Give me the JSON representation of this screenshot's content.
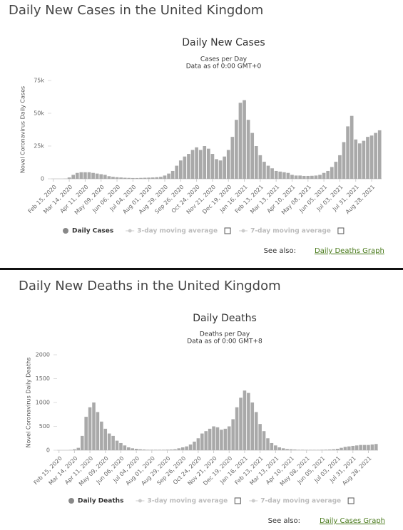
{
  "sections": [
    {
      "heading": "Daily New Cases in the United Kingdom",
      "see_also": "See also:",
      "link": "Daily Deaths Graph"
    },
    {
      "heading": "Daily New Deaths in the United Kingdom",
      "see_also": "See also:",
      "link": "Daily Cases Graph"
    }
  ],
  "chart_data": [
    {
      "type": "bar",
      "title": "Daily New Cases",
      "subtitle": [
        "Cases per Day",
        "Data as of 0:00 GMT+0"
      ],
      "y_label": "Novel Coronavirus Daily Cases",
      "categories": [
        "Feb 15, 2020",
        null,
        null,
        null,
        "Mar 14, 2020",
        null,
        null,
        null,
        "Apr 11, 2020",
        null,
        null,
        null,
        "May 09, 2020",
        null,
        null,
        null,
        "Jun 06, 2020",
        null,
        null,
        null,
        "Jul 04, 2020",
        null,
        null,
        null,
        "Aug 01, 2020",
        null,
        null,
        null,
        "Aug 29, 2020",
        null,
        null,
        null,
        "Sep 26, 2020",
        null,
        null,
        null,
        "Oct 24, 2020",
        null,
        null,
        null,
        "Nov 21, 2020",
        null,
        null,
        null,
        "Dec 19, 2020",
        null,
        null,
        null,
        "Jan 16, 2021",
        null,
        null,
        null,
        "Feb 13, 2021",
        null,
        null,
        null,
        "Mar 13, 2021",
        null,
        null,
        null,
        "Apr 10, 2021",
        null,
        null,
        null,
        "May 08, 2021",
        null,
        null,
        null,
        "Jun 05, 2021",
        null,
        null,
        null,
        "Jul 03, 2021",
        null,
        null,
        null,
        "Jul 31, 2021",
        null,
        null,
        null,
        "Aug 28, 2021",
        null,
        null
      ],
      "series": [
        {
          "name": "Daily Cases",
          "color": "#a9a9a9",
          "values": [
            0,
            0,
            0,
            100,
            1000,
            3000,
            4500,
            5000,
            5000,
            5000,
            4500,
            4000,
            3500,
            3000,
            2000,
            1500,
            1200,
            1000,
            800,
            700,
            600,
            600,
            700,
            800,
            900,
            1000,
            1200,
            1500,
            2500,
            4000,
            6000,
            10000,
            14000,
            17000,
            19000,
            22000,
            24000,
            22000,
            25000,
            23000,
            19000,
            15000,
            14000,
            17000,
            22000,
            32000,
            45000,
            58000,
            60000,
            45000,
            35000,
            25000,
            18000,
            13000,
            10000,
            8000,
            6000,
            5500,
            5000,
            4500,
            3000,
            2500,
            2500,
            2200,
            2200,
            2300,
            2500,
            3000,
            4500,
            6000,
            9000,
            13000,
            18000,
            28000,
            40000,
            48000,
            30000,
            27000,
            29000,
            32000,
            33000,
            35000,
            37000
          ]
        }
      ],
      "inactive_legend": [
        "3-day moving average",
        "7-day moving average"
      ],
      "ylim": [
        0,
        75000
      ],
      "yticks": [
        0,
        {
          "value": 25000,
          "label": "25k"
        },
        {
          "value": 50000,
          "label": "50k"
        },
        {
          "value": 75000,
          "label": "75k"
        }
      ],
      "grid": false
    },
    {
      "type": "bar",
      "title": "Daily Deaths",
      "subtitle": [
        "Deaths per Day",
        "Data as of 0:00 GMT+8"
      ],
      "y_label": "Novel Coronavirus Daily Deaths",
      "categories": [
        "Feb 15, 2020",
        null,
        null,
        null,
        "Mar 14, 2020",
        null,
        null,
        null,
        "Apr 11, 2020",
        null,
        null,
        null,
        "May 09, 2020",
        null,
        null,
        null,
        "Jun 06, 2020",
        null,
        null,
        null,
        "Jul 04, 2020",
        null,
        null,
        null,
        "Aug 01, 2020",
        null,
        null,
        null,
        "Aug 29, 2020",
        null,
        null,
        null,
        "Sep 26, 2020",
        null,
        null,
        null,
        "Oct 24, 2020",
        null,
        null,
        null,
        "Nov 21, 2020",
        null,
        null,
        null,
        "Dec 19, 2020",
        null,
        null,
        null,
        "Jan 16, 2021",
        null,
        null,
        null,
        "Feb 13, 2021",
        null,
        null,
        null,
        "Mar 13, 2021",
        null,
        null,
        null,
        "Apr 10, 2021",
        null,
        null,
        null,
        "May 08, 2021",
        null,
        null,
        null,
        "Jun 05, 2021",
        null,
        null,
        null,
        "Jul 03, 2021",
        null,
        null,
        null,
        "Jul 31, 2021",
        null,
        null,
        null,
        "Aug 28, 2021",
        null,
        null
      ],
      "series": [
        {
          "name": "Daily Deaths",
          "color": "#a9a9a9",
          "values": [
            0,
            0,
            0,
            5,
            20,
            50,
            300,
            700,
            900,
            1000,
            800,
            600,
            450,
            350,
            300,
            200,
            150,
            100,
            60,
            40,
            30,
            20,
            15,
            10,
            10,
            10,
            10,
            10,
            12,
            15,
            20,
            40,
            60,
            80,
            120,
            180,
            250,
            350,
            400,
            450,
            500,
            480,
            430,
            450,
            500,
            650,
            900,
            1100,
            1250,
            1200,
            1000,
            800,
            550,
            400,
            250,
            150,
            100,
            60,
            40,
            25,
            20,
            15,
            10,
            10,
            8,
            8,
            8,
            8,
            10,
            12,
            15,
            20,
            30,
            50,
            70,
            80,
            90,
            100,
            110,
            110,
            110,
            120,
            130
          ]
        }
      ],
      "inactive_legend": [
        "3-day moving average",
        "7-day moving average"
      ],
      "ylim": [
        0,
        2000
      ],
      "yticks": [
        0,
        500,
        1000,
        1500,
        2000
      ],
      "grid": false
    }
  ]
}
